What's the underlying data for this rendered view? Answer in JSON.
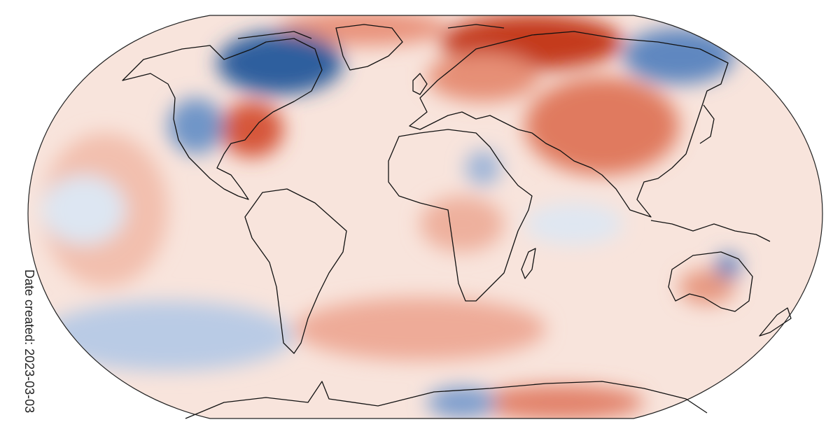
{
  "map": {
    "projection": "robinson-like",
    "colors": {
      "warm_strong": "#c1361a",
      "warm_mid": "#e8806a",
      "warm_light": "#f7d3c4",
      "neutral": "#f6efec",
      "cool_light": "#d6e2f1",
      "cool_mid": "#8fb0d8",
      "cool_strong": "#2f5f9e",
      "coastline": "#111111",
      "frame": "#222222"
    }
  },
  "date_created": "Date created: 2023-03-03"
}
